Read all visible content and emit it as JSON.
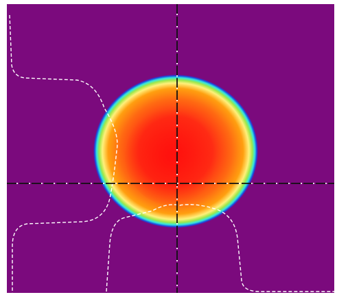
{
  "colors": {
    "background": "#7b0a7d",
    "border": "#ffffff",
    "crosshair_dark": "#111111",
    "crosshair_light": "#ffffff",
    "profile": "#ffffff",
    "spot_ring_outer": "#1a46e0",
    "spot_ring_cyan": "#34e6e0",
    "spot_ring_green": "#9fe84a",
    "spot_ring_yellow": "#fff07a",
    "spot_edge_orange": "#ff9f10",
    "spot_core_red": "#ff1a12"
  },
  "icons": {
    "crosshair": "crosshair-icon"
  }
}
